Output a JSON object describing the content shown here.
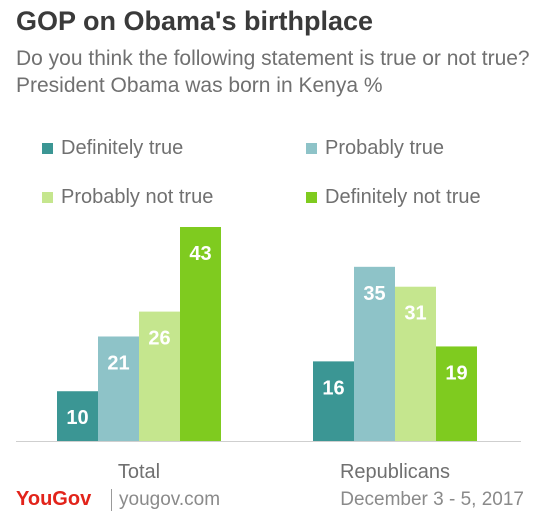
{
  "header": {
    "title": "GOP on Obama's birthplace",
    "subtitle": "Do you think the following statement is true or not true? President Obama was born in Kenya %"
  },
  "footer": {
    "logo": "YouGov",
    "site": "yougov.com",
    "date": "December 3 - 5, 2017"
  },
  "chart_data": {
    "type": "bar",
    "categories": [
      "Total",
      "Republicans"
    ],
    "series": [
      {
        "name": "Definitely true",
        "color": "#3b9694",
        "values": [
          10,
          16
        ]
      },
      {
        "name": "Probably true",
        "color": "#8ec3c8",
        "values": [
          21,
          35
        ]
      },
      {
        "name": "Probably not true",
        "color": "#c5e68e",
        "values": [
          26,
          31
        ]
      },
      {
        "name": "Definitely not true",
        "color": "#7fcb1f",
        "values": [
          43,
          19
        ]
      }
    ],
    "ylim": [
      0,
      50
    ],
    "grid": false,
    "legend_position": "top",
    "data_labels": true
  }
}
